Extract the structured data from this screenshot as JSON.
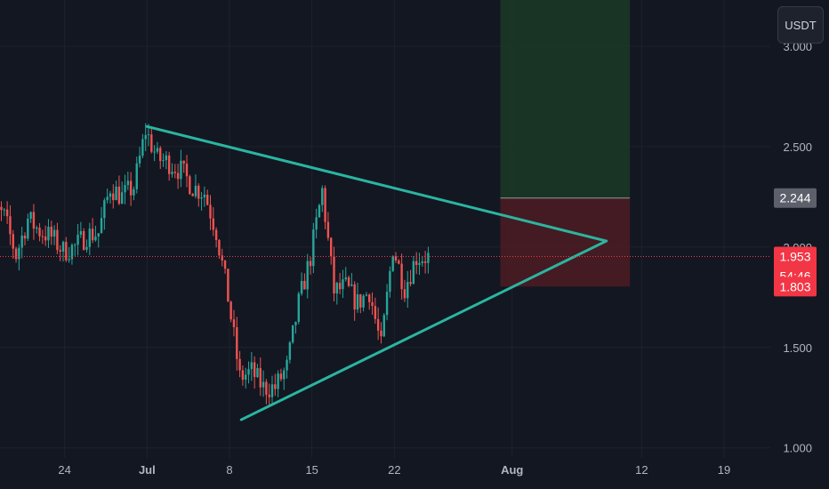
{
  "header": {
    "currency_label": "USDT"
  },
  "colors": {
    "background": "#131722",
    "grid": "#1e222d",
    "up": "#26a69a",
    "down": "#ef5350",
    "trendline": "#2bb5a0",
    "target_zone": "#1b3a24",
    "stop_zone": "#4a1c22",
    "current_price_line": "#f23645",
    "axis_text": "#b2b5be",
    "entry_badge": "#5d606b"
  },
  "chart_data": {
    "type": "candlestick",
    "title": "",
    "xlabel": "",
    "ylabel": "",
    "grid": true,
    "ylim": [
      0.95,
      3.23
    ],
    "xlim": [
      "2024-06-17",
      "2024-08-23"
    ],
    "y_ticks": [
      {
        "value": 1.0,
        "label": "1.000"
      },
      {
        "value": 1.5,
        "label": "1.500"
      },
      {
        "value": 2.0,
        "label": "2.000"
      },
      {
        "value": 2.5,
        "label": "2.500"
      },
      {
        "value": 3.0,
        "label": "3.000"
      }
    ],
    "x_ticks": [
      {
        "date": "2024-06-24",
        "label": "24",
        "bold": false
      },
      {
        "date": "2024-07-01",
        "label": "Jul",
        "bold": true
      },
      {
        "date": "2024-07-08",
        "label": "8",
        "bold": false
      },
      {
        "date": "2024-07-15",
        "label": "15",
        "bold": false
      },
      {
        "date": "2024-07-22",
        "label": "22",
        "bold": false
      },
      {
        "date": "2024-08-01",
        "label": "Aug",
        "bold": true
      },
      {
        "date": "2024-08-12",
        "label": "12",
        "bold": false
      },
      {
        "date": "2024-08-19",
        "label": "19",
        "bold": false
      }
    ],
    "price_anchors": [
      {
        "date": "2024-06-17",
        "price": 2.58
      },
      {
        "date": "2024-06-18",
        "price": 2.2
      },
      {
        "date": "2024-06-19",
        "price": 2.15
      },
      {
        "date": "2024-06-20",
        "price": 1.96
      },
      {
        "date": "2024-06-21",
        "price": 2.14
      },
      {
        "date": "2024-06-22",
        "price": 2.08
      },
      {
        "date": "2024-06-23",
        "price": 2.05
      },
      {
        "date": "2024-06-24",
        "price": 1.98
      },
      {
        "date": "2024-06-25",
        "price": 2.0
      },
      {
        "date": "2024-06-26",
        "price": 2.06
      },
      {
        "date": "2024-06-27",
        "price": 2.07
      },
      {
        "date": "2024-06-28",
        "price": 2.3
      },
      {
        "date": "2024-06-29",
        "price": 2.25
      },
      {
        "date": "2024-06-30",
        "price": 2.3
      },
      {
        "date": "2024-07-01",
        "price": 2.58
      },
      {
        "date": "2024-07-02",
        "price": 2.44
      },
      {
        "date": "2024-07-03",
        "price": 2.42
      },
      {
        "date": "2024-07-04",
        "price": 2.38
      },
      {
        "date": "2024-07-05",
        "price": 2.3
      },
      {
        "date": "2024-07-06",
        "price": 2.27
      },
      {
        "date": "2024-07-07",
        "price": 2.08
      },
      {
        "date": "2024-07-08",
        "price": 1.75
      },
      {
        "date": "2024-07-09",
        "price": 1.35
      },
      {
        "date": "2024-07-10",
        "price": 1.38
      },
      {
        "date": "2024-07-11",
        "price": 1.3
      },
      {
        "date": "2024-07-12",
        "price": 1.3
      },
      {
        "date": "2024-07-13",
        "price": 1.4
      },
      {
        "date": "2024-07-14",
        "price": 1.72
      },
      {
        "date": "2024-07-15",
        "price": 1.95
      },
      {
        "date": "2024-07-16",
        "price": 2.28
      },
      {
        "date": "2024-07-17",
        "price": 1.78
      },
      {
        "date": "2024-07-18",
        "price": 1.8
      },
      {
        "date": "2024-07-19",
        "price": 1.72
      },
      {
        "date": "2024-07-20",
        "price": 1.78
      },
      {
        "date": "2024-07-21",
        "price": 1.5
      },
      {
        "date": "2024-07-22",
        "price": 2.0
      },
      {
        "date": "2024-07-23",
        "price": 1.8
      },
      {
        "date": "2024-07-24",
        "price": 1.95
      },
      {
        "date": "2024-07-25",
        "price": 1.95
      }
    ],
    "trendlines": [
      {
        "name": "upper",
        "from": {
          "date": "2024-07-01",
          "price": 2.6
        },
        "to": {
          "date": "2024-08-09",
          "price": 2.03
        }
      },
      {
        "name": "lower",
        "from": {
          "date": "2024-07-09",
          "price": 1.14
        },
        "to": {
          "date": "2024-08-09",
          "price": 2.03
        }
      }
    ],
    "position": {
      "start": "2024-07-31",
      "end": "2024-08-11",
      "entry": 2.244,
      "target": 3.43,
      "stop": 1.803
    },
    "current_price": 1.953,
    "price_labels": [
      {
        "name": "entry",
        "value": 2.244,
        "text": "2.244",
        "sub": ""
      },
      {
        "name": "current",
        "value": 1.953,
        "text": "1.953",
        "sub": "54:46"
      },
      {
        "name": "stop",
        "value": 1.803,
        "text": "1.803",
        "sub": ""
      }
    ]
  }
}
